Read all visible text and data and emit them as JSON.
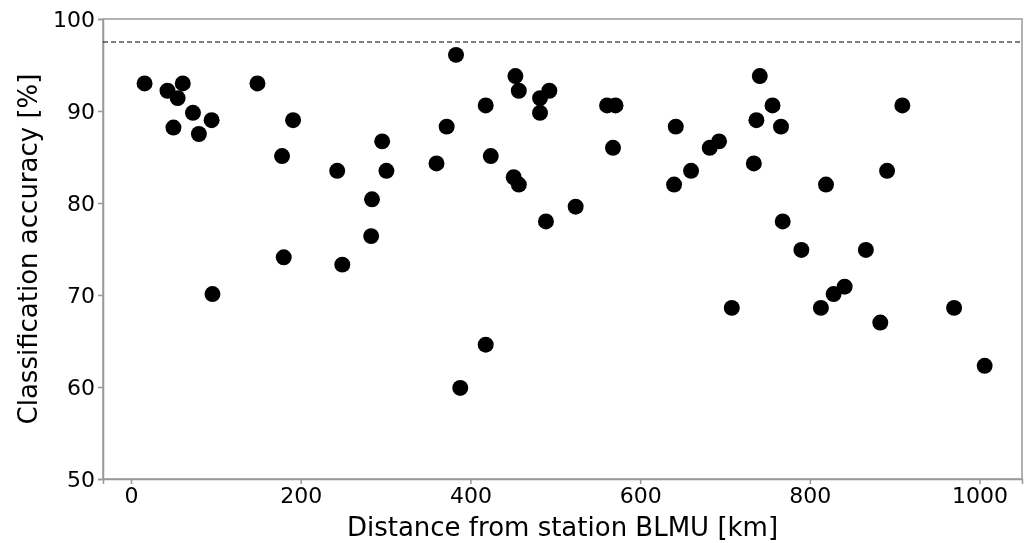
{
  "chart_data": {
    "type": "scatter",
    "xlabel": "Distance from station BLMU [km]",
    "ylabel": "Classification accuracy [%]",
    "xlim": [
      -33,
      1050
    ],
    "xticks": [
      0,
      200,
      400,
      600,
      800,
      1000
    ],
    "ylim": [
      50,
      100
    ],
    "yticks": [
      50,
      60,
      70,
      80,
      90,
      100
    ],
    "grid": false,
    "marker": "circle",
    "ref_lines": [
      {
        "axis": "y",
        "value": 97.5,
        "line_style": "dashed",
        "color": "#000000"
      }
    ],
    "series": [
      {
        "color": "#000000",
        "x": [
          16,
          43,
          61,
          55,
          50,
          73,
          95,
          80,
          96,
          149,
          191,
          178,
          180,
          243,
          249,
          284,
          283,
          296,
          301,
          360,
          372,
          383,
          388,
          418,
          418,
          424,
          453,
          457,
          451,
          457,
          482,
          493,
          482,
          489,
          524,
          561,
          571,
          568,
          642,
          640,
          660,
          682,
          693,
          708,
          737,
          734,
          741,
          756,
          766,
          768,
          790,
          819,
          813,
          828,
          841,
          866,
          883,
          891,
          909,
          970,
          1006
        ],
        "values": [
          93.0,
          92.2,
          93.0,
          91.4,
          88.2,
          89.8,
          89.0,
          87.5,
          70.1,
          93.0,
          89.0,
          85.1,
          74.1,
          83.5,
          73.3,
          80.4,
          76.4,
          86.7,
          83.5,
          84.3,
          88.3,
          96.1,
          59.9,
          90.6,
          64.6,
          85.1,
          93.8,
          92.2,
          82.8,
          82.0,
          91.4,
          92.2,
          89.8,
          78.0,
          79.6,
          90.6,
          90.6,
          86.0,
          88.3,
          82.0,
          83.5,
          86.0,
          86.7,
          68.6,
          89.0,
          84.3,
          93.8,
          90.6,
          88.3,
          78.0,
          74.9,
          82.0,
          68.6,
          70.1,
          70.9,
          74.9,
          67.0,
          83.5,
          90.6,
          68.6,
          62.3
        ]
      }
    ]
  }
}
